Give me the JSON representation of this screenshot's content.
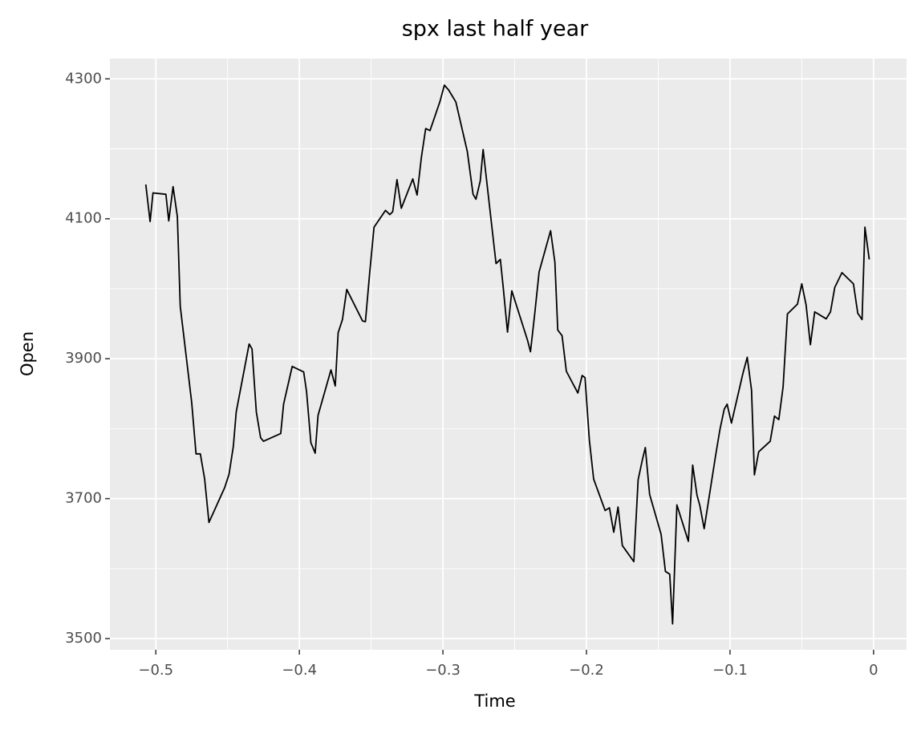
{
  "chart_data": {
    "type": "line",
    "title": "spx last half year",
    "x_label": "Time",
    "y_label": "Open",
    "series": [
      {
        "name": "Open",
        "color": "#000000",
        "x": [
          -0.507,
          -0.504,
          -0.502,
          -0.493,
          -0.491,
          -0.488,
          -0.485,
          -0.483,
          -0.475,
          -0.472,
          -0.469,
          -0.466,
          -0.463,
          -0.452,
          -0.449,
          -0.446,
          -0.444,
          -0.435,
          -0.433,
          -0.43,
          -0.427,
          -0.425,
          -0.413,
          -0.411,
          -0.405,
          -0.397,
          -0.395,
          -0.392,
          -0.389,
          -0.387,
          -0.378,
          -0.375,
          -0.373,
          -0.37,
          -0.367,
          -0.356,
          -0.354,
          -0.351,
          -0.348,
          -0.34,
          -0.337,
          -0.335,
          -0.332,
          -0.329,
          -0.321,
          -0.318,
          -0.315,
          -0.312,
          -0.309,
          -0.302,
          -0.299,
          -0.296,
          -0.291,
          -0.283,
          -0.279,
          -0.277,
          -0.274,
          -0.272,
          -0.263,
          -0.26,
          -0.258,
          -0.255,
          -0.252,
          -0.241,
          -0.239,
          -0.236,
          -0.233,
          -0.225,
          -0.222,
          -0.22,
          -0.217,
          -0.214,
          -0.206,
          -0.203,
          -0.201,
          -0.198,
          -0.195,
          -0.187,
          -0.184,
          -0.181,
          -0.178,
          -0.175,
          -0.167,
          -0.164,
          -0.161,
          -0.159,
          -0.156,
          -0.148,
          -0.145,
          -0.142,
          -0.14,
          -0.137,
          -0.129,
          -0.126,
          -0.123,
          -0.121,
          -0.118,
          -0.11,
          -0.107,
          -0.104,
          -0.102,
          -0.099,
          -0.091,
          -0.088,
          -0.085,
          -0.083,
          -0.08,
          -0.072,
          -0.069,
          -0.066,
          -0.063,
          -0.06,
          -0.053,
          -0.05,
          -0.047,
          -0.044,
          -0.041,
          -0.033,
          -0.03,
          -0.027,
          -0.022,
          -0.014,
          -0.011,
          -0.008,
          -0.006,
          -0.003
        ],
        "values": [
          4149,
          4096,
          4137,
          4135,
          4097,
          4146,
          4103,
          3975,
          3837,
          3764,
          3764,
          3728,
          3666,
          3716,
          3735,
          3775,
          3824,
          3921,
          3914,
          3824,
          3787,
          3782,
          3793,
          3835,
          3889,
          3881,
          3853,
          3780,
          3765,
          3819,
          3884,
          3861,
          3937,
          3956,
          3999,
          3954,
          3953,
          4023,
          4088,
          4112,
          4106,
          4110,
          4156,
          4115,
          4157,
          4134,
          4188,
          4229,
          4226,
          4268,
          4291,
          4284,
          4267,
          4196,
          4135,
          4128,
          4154,
          4199,
          4036,
          4042,
          4002,
          3938,
          3997,
          3926,
          3910,
          3965,
          4024,
          4083,
          4038,
          3941,
          3933,
          3882,
          3851,
          3876,
          3873,
          3784,
          3728,
          3683,
          3687,
          3652,
          3688,
          3633,
          3610,
          3727,
          3756,
          3773,
          3706,
          3649,
          3596,
          3592,
          3521,
          3691,
          3639,
          3748,
          3705,
          3690,
          3657,
          3762,
          3799,
          3828,
          3835,
          3808,
          3879,
          3902,
          3855,
          3734,
          3767,
          3782,
          3818,
          3813,
          3860,
          3964,
          3978,
          4007,
          3977,
          3920,
          3967,
          3957,
          3967,
          4002,
          4023,
          4007,
          3965,
          3956,
          4088,
          4042
        ]
      }
    ],
    "xlim": [
      -0.532,
      0.023
    ],
    "ylim": [
      3484,
      4329
    ],
    "xticks": [
      {
        "value": -0.5,
        "label": "−0.5"
      },
      {
        "value": -0.4,
        "label": "−0.4"
      },
      {
        "value": -0.3,
        "label": "−0.3"
      },
      {
        "value": -0.2,
        "label": "−0.2"
      },
      {
        "value": -0.1,
        "label": "−0.1"
      },
      0
    ],
    "yticks": [
      3500,
      3700,
      3900,
      4100,
      4300
    ],
    "grid": true,
    "minor_grid": true,
    "legend": false
  }
}
